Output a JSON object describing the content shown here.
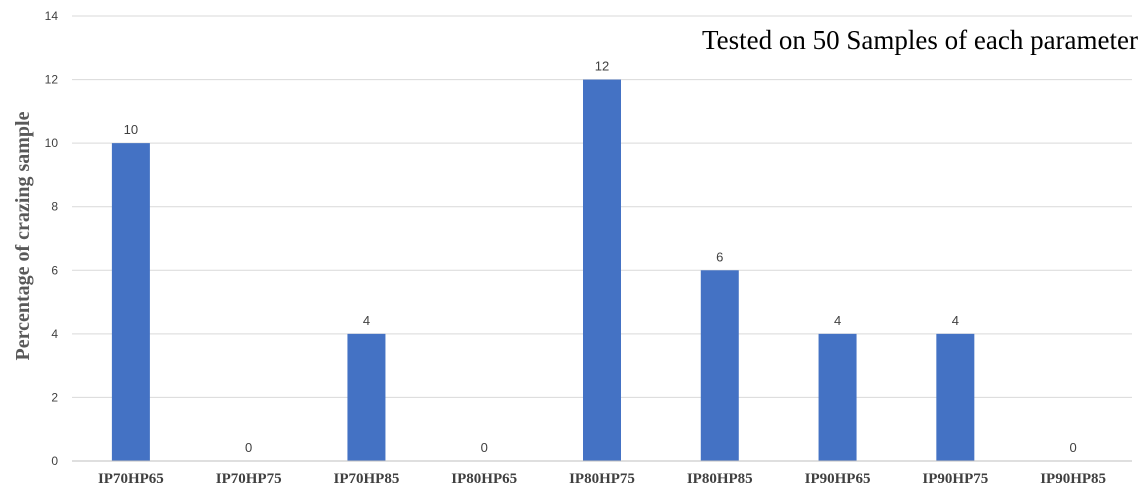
{
  "chart_data": {
    "type": "bar",
    "title": "",
    "annotation": "Tested on 50 Samples of each parameter",
    "xlabel": "",
    "ylabel": "Percentage of crazing sample",
    "categories": [
      "IP70HP65",
      "IP70HP75",
      "IP70HP85",
      "IP80HP65",
      "IP80HP75",
      "IP80HP85",
      "IP90HP65",
      "IP90HP75",
      "IP90HP85"
    ],
    "values": [
      10,
      0,
      4,
      0,
      12,
      6,
      4,
      4,
      0
    ],
    "data_labels": [
      "10",
      "0",
      "4",
      "0",
      "12",
      "6",
      "4",
      "4",
      "0"
    ],
    "ylim": [
      0,
      14
    ],
    "yticks": [
      0,
      2,
      4,
      6,
      8,
      10,
      12,
      14
    ],
    "grid": true,
    "legend": "none",
    "bar_color": "#4472C4",
    "grid_color": "#D9D9D9",
    "axis_color": "#BFBFBF"
  }
}
